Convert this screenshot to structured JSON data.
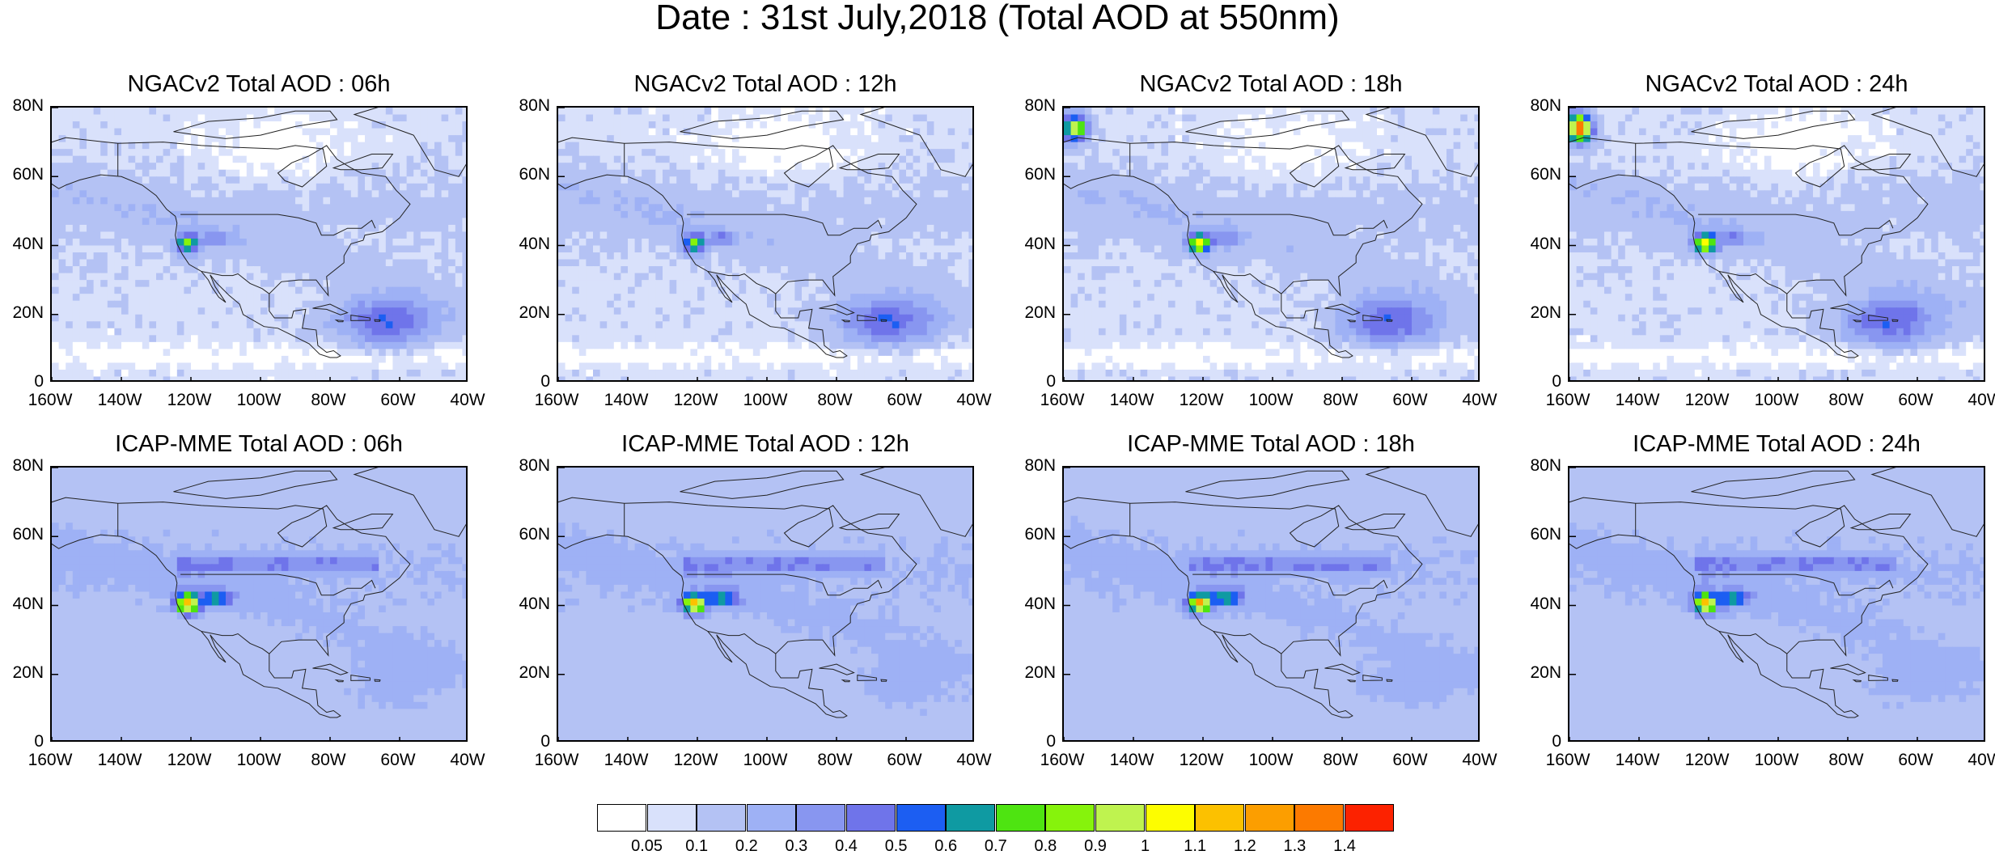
{
  "title": "Date : 31st July,2018 (Total AOD at 550nm)",
  "panels": [
    {
      "title": "NGACv2 Total AOD : 06h",
      "model": "NGACv2",
      "hour": 6
    },
    {
      "title": "NGACv2 Total AOD : 12h",
      "model": "NGACv2",
      "hour": 12
    },
    {
      "title": "NGACv2 Total AOD : 18h",
      "model": "NGACv2",
      "hour": 18
    },
    {
      "title": "NGACv2 Total AOD : 24h",
      "model": "NGACv2",
      "hour": 24
    },
    {
      "title": "ICAP-MME Total AOD : 06h",
      "model": "ICAP-MME",
      "hour": 6
    },
    {
      "title": "ICAP-MME Total AOD : 12h",
      "model": "ICAP-MME",
      "hour": 12
    },
    {
      "title": "ICAP-MME Total AOD : 18h",
      "model": "ICAP-MME",
      "hour": 18
    },
    {
      "title": "ICAP-MME Total AOD : 24h",
      "model": "ICAP-MME",
      "hour": 24
    }
  ],
  "lat_ticks": [
    "80N",
    "60N",
    "40N",
    "20N",
    "0"
  ],
  "lat_values": [
    80,
    60,
    40,
    20,
    0
  ],
  "lon_ticks": [
    "160W",
    "140W",
    "120W",
    "100W",
    "80W",
    "60W",
    "40W"
  ],
  "lon_values": [
    -160,
    -140,
    -120,
    -100,
    -80,
    -60,
    -40
  ],
  "extent": {
    "lon_min": -160,
    "lon_max": -40,
    "lat_min": 0,
    "lat_max": 80
  },
  "colorbar": {
    "levels": [
      "0.05",
      "0.1",
      "0.2",
      "0.3",
      "0.4",
      "0.5",
      "0.6",
      "0.7",
      "0.8",
      "0.9",
      "1",
      "1.1",
      "1.2",
      "1.3",
      "1.4"
    ],
    "colors": [
      "#ffffff",
      "#d9e1fb",
      "#b4c2f4",
      "#9eb1f5",
      "#8896f0",
      "#6f74ea",
      "#1c5ef2",
      "#0f9aa2",
      "#4ee411",
      "#86f30c",
      "#bff34f",
      "#fdfd00",
      "#fcc100",
      "#fc9e00",
      "#fc7a00",
      "#fc2200"
    ]
  }
}
